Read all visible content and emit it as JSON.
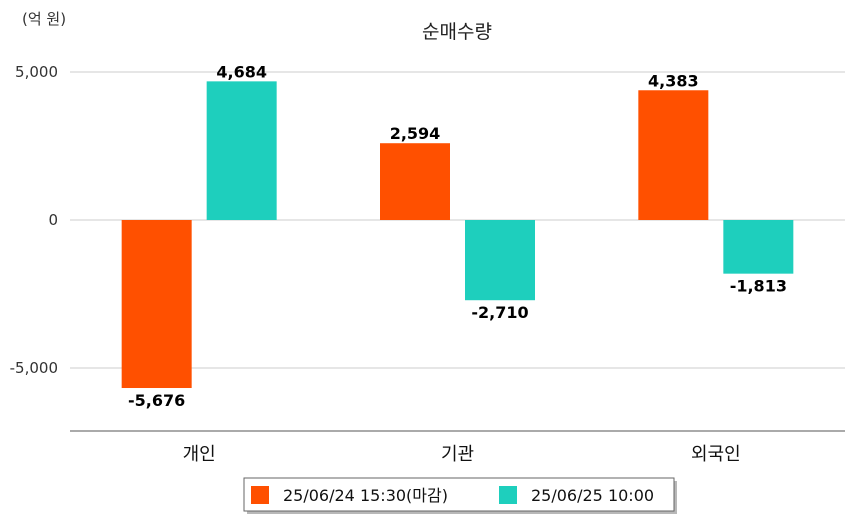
{
  "chart_data": {
    "type": "bar",
    "title": "순매수량",
    "unit_label": "(억 원)",
    "categories": [
      "개인",
      "기관",
      "외국인"
    ],
    "series": [
      {
        "name": "25/06/24 15:30(마감)",
        "color": "#ff5000",
        "values": [
          -5676,
          2594,
          4383
        ]
      },
      {
        "name": "25/06/25 10:00",
        "color": "#1ecfbd",
        "values": [
          4684,
          -2710,
          -1813
        ]
      }
    ],
    "ylim": [
      -7000,
      5000
    ],
    "yticks": [
      5000,
      0,
      -5000
    ],
    "ytick_labels": [
      "5,000",
      "0",
      "-5,000"
    ],
    "data_labels": [
      [
        "-5,676",
        "2,594",
        "4,383"
      ],
      [
        "4,684",
        "-2,710",
        "-1,813"
      ]
    ],
    "grid": true,
    "legend_position": "bottom"
  }
}
